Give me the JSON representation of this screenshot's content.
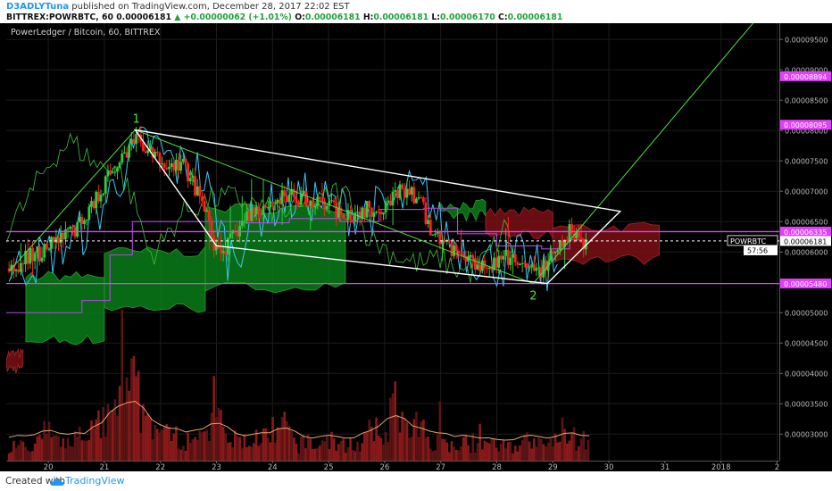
{
  "header": {
    "author": "D3ADLYTuna",
    "published_text": " published on TradingView.com, December 28, 2017 22:02 EST",
    "symbol_line": "BITTREX:POWRBTC, 60",
    "last": "0.00006181",
    "change": "+0.00000062 (+1.01%)",
    "o_label": "O:",
    "o_value": "0.00006181",
    "h_label": "H:",
    "h_value": "0.00006181",
    "l_label": "L:",
    "l_value": "0.00006170",
    "c_label": "C:",
    "c_value": "0.00006181"
  },
  "footer": {
    "created_with": "Created with",
    "brand": "TradingView"
  },
  "chart_data": {
    "type": "candlestick",
    "title": "PowerLedger / Bitcoin, 60, BITTREX",
    "x_ticks": [
      "20",
      "21",
      "22",
      "23",
      "24",
      "25",
      "26",
      "27",
      "28",
      "29",
      "30",
      "31",
      "2018",
      "2"
    ],
    "y_ticks": [
      "0.00009500",
      "0.00009000",
      "0.00008500",
      "0.00008000",
      "0.00007500",
      "0.00007000",
      "0.00006500",
      "0.00006000",
      "0.00005000",
      "0.00004500",
      "0.00004000",
      "0.00003500",
      "0.00003000"
    ],
    "y_range": [
      2.563e-05,
      9.767e-05
    ],
    "x_range": [
      19.25,
      33.04
    ],
    "price_labels": [
      {
        "value": 8.894e-05,
        "text": "0.00008894",
        "color": "#e040fb"
      },
      {
        "value": 8.095e-05,
        "text": "0.00008095",
        "color": "#e040fb"
      },
      {
        "value": 6.335e-05,
        "text": "0.00006335",
        "color": "#e040fb"
      },
      {
        "value": 5.48e-05,
        "text": "0.00005480",
        "color": "#e040fb"
      },
      {
        "value": 6.181e-05,
        "text": "0.00006181",
        "color": "#ffffff"
      }
    ],
    "symbol_label": "POWRBTC",
    "countdown": "57:56",
    "annotations": [
      "1",
      "2"
    ],
    "points": [
      {
        "x": 19.3,
        "y": 5.73e-05
      },
      {
        "x": 19.6,
        "y": 5.88e-05
      },
      {
        "x": 19.9,
        "y": 6.02e-05
      },
      {
        "x": 20.2,
        "y": 6.18e-05
      },
      {
        "x": 20.5,
        "y": 6.4e-05
      },
      {
        "x": 20.8,
        "y": 6.8e-05
      },
      {
        "x": 21.1,
        "y": 7.3e-05
      },
      {
        "x": 21.4,
        "y": 7.68e-05
      },
      {
        "x": 21.6,
        "y": 7.82e-05
      },
      {
        "x": 21.8,
        "y": 7.65e-05
      },
      {
        "x": 22.1,
        "y": 7.4e-05
      },
      {
        "x": 22.4,
        "y": 7.45e-05
      },
      {
        "x": 22.6,
        "y": 7.1e-05
      },
      {
        "x": 22.8,
        "y": 6.65e-05
      },
      {
        "x": 23.0,
        "y": 5.95e-05
      },
      {
        "x": 23.2,
        "y": 6.1e-05
      },
      {
        "x": 23.4,
        "y": 6.4e-05
      },
      {
        "x": 23.6,
        "y": 6.65e-05
      },
      {
        "x": 23.9,
        "y": 6.8e-05
      },
      {
        "x": 24.2,
        "y": 6.88e-05
      },
      {
        "x": 24.5,
        "y": 6.9e-05
      },
      {
        "x": 24.8,
        "y": 6.8e-05
      },
      {
        "x": 25.1,
        "y": 6.7e-05
      },
      {
        "x": 25.4,
        "y": 6.65e-05
      },
      {
        "x": 25.7,
        "y": 6.7e-05
      },
      {
        "x": 26.0,
        "y": 6.78e-05
      },
      {
        "x": 26.3,
        "y": 7e-05
      },
      {
        "x": 26.6,
        "y": 6.9e-05
      },
      {
        "x": 26.8,
        "y": 6.4e-05
      },
      {
        "x": 27.0,
        "y": 6.2e-05
      },
      {
        "x": 27.3,
        "y": 6e-05
      },
      {
        "x": 27.6,
        "y": 5.85e-05
      },
      {
        "x": 27.9,
        "y": 5.8e-05
      },
      {
        "x": 28.2,
        "y": 5.9e-05
      },
      {
        "x": 28.4,
        "y": 5.75e-05
      },
      {
        "x": 28.7,
        "y": 5.65e-05
      },
      {
        "x": 29.0,
        "y": 5.9e-05
      },
      {
        "x": 29.2,
        "y": 6.15e-05
      },
      {
        "x": 29.35,
        "y": 6.4e-05
      },
      {
        "x": 29.5,
        "y": 6.2e-05
      },
      {
        "x": 29.6,
        "y": 6.18e-05
      }
    ],
    "volume_bars": [
      {
        "x": 19.5,
        "v": 0.3
      },
      {
        "x": 20.0,
        "v": 0.4
      },
      {
        "x": 20.5,
        "v": 0.35
      },
      {
        "x": 21.0,
        "v": 0.55
      },
      {
        "x": 21.3,
        "v": 0.9
      },
      {
        "x": 21.5,
        "v": 1.0
      },
      {
        "x": 21.8,
        "v": 0.6
      },
      {
        "x": 22.2,
        "v": 0.45
      },
      {
        "x": 22.6,
        "v": 0.4
      },
      {
        "x": 23.0,
        "v": 0.55
      },
      {
        "x": 23.4,
        "v": 0.3
      },
      {
        "x": 23.8,
        "v": 0.35
      },
      {
        "x": 24.2,
        "v": 0.45
      },
      {
        "x": 24.6,
        "v": 0.25
      },
      {
        "x": 25.0,
        "v": 0.3
      },
      {
        "x": 25.4,
        "v": 0.25
      },
      {
        "x": 25.8,
        "v": 0.4
      },
      {
        "x": 26.2,
        "v": 0.7
      },
      {
        "x": 26.6,
        "v": 0.45
      },
      {
        "x": 27.0,
        "v": 0.35
      },
      {
        "x": 27.4,
        "v": 0.3
      },
      {
        "x": 27.8,
        "v": 0.25
      },
      {
        "x": 28.2,
        "v": 0.2
      },
      {
        "x": 28.6,
        "v": 0.3
      },
      {
        "x": 29.0,
        "v": 0.25
      },
      {
        "x": 29.3,
        "v": 0.35
      },
      {
        "x": 29.55,
        "v": 0.3
      }
    ],
    "colors": {
      "background": "#000000",
      "up": "#2ecc40",
      "down": "#ff2020",
      "volume": "#8a1a1a",
      "conversion_line": "#39c6f2",
      "base_line": "#b545e8",
      "cloud_bull": "#0b7d19",
      "cloud_bear": "#7a1016",
      "channel": "#ffffff",
      "trend": "#4ce23d",
      "level": "#e040fb",
      "grid": "#1c1c1c",
      "axis_text": "#bbbbbb"
    }
  }
}
